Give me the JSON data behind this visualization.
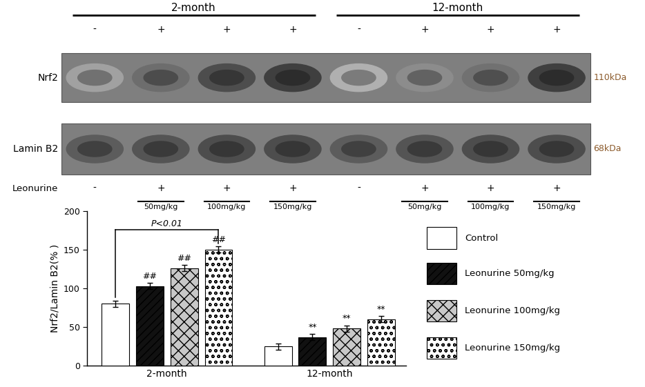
{
  "bar_labels": [
    "Control",
    "Leonurine 50mg/kg",
    "Leonurine 100mg/kg",
    "Leonurine 150mg/kg"
  ],
  "values_2month": [
    80,
    103,
    126,
    150
  ],
  "values_12month": [
    25,
    37,
    48,
    60
  ],
  "errors_2month": [
    4,
    4,
    4,
    4
  ],
  "errors_12month": [
    4,
    4,
    4,
    4
  ],
  "ylabel": "Nrf2/Lamin B2(% )",
  "significance_2month": [
    "##",
    "##",
    "##"
  ],
  "significance_12month": [
    "**",
    "**",
    "**"
  ],
  "bracket_label": "P<0.01",
  "figure_bg": "white",
  "blot_bg": "#7f7f7f",
  "nrf2_label": "Nrf2",
  "laminb2_label": "Lamin B2",
  "kda_nrf2": "110kDa",
  "kda_laminb2": "68kDa",
  "leonurine_label": "Leonurine",
  "plus_signs": [
    "-",
    "+",
    "+",
    "+",
    "-",
    "+",
    "+",
    "+"
  ],
  "nrf2_intensities": [
    0.45,
    0.7,
    0.85,
    0.92,
    0.38,
    0.55,
    0.68,
    0.92
  ],
  "laminb2_intensities": [
    0.78,
    0.82,
    0.85,
    0.85,
    0.78,
    0.82,
    0.85,
    0.85
  ]
}
